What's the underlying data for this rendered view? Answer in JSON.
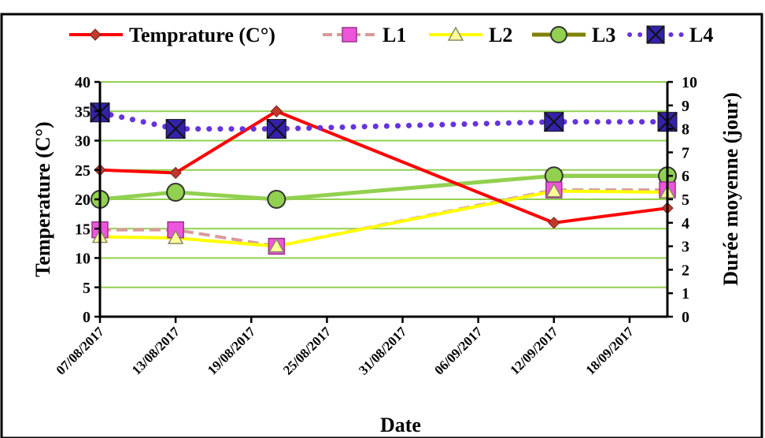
{
  "chart_data": {
    "type": "line",
    "xlabel": "Date",
    "ylabel_left": "Temperature (C°)",
    "ylabel_right": "Durée moyenne (jour)",
    "ylim_left": [
      0,
      40
    ],
    "ylim_right": [
      0,
      10
    ],
    "yticks_left": [
      "0",
      "5",
      "10",
      "15",
      "20",
      "25",
      "30",
      "35",
      "40"
    ],
    "yticks_right": [
      "0",
      "1",
      "2",
      "3",
      "4",
      "5",
      "6",
      "7",
      "8",
      "9",
      "10"
    ],
    "xticks": [
      "07/08/2017",
      "13/08/2017",
      "19/08/2017",
      "25/08/2017",
      "31/08/2017",
      "06/09/2017",
      "12/09/2017",
      "18/09/2017"
    ],
    "xtick_days": [
      0,
      6,
      12,
      18,
      24,
      30,
      36,
      42
    ],
    "x_range_days": [
      0,
      45
    ],
    "grid": true,
    "legend_position": "top",
    "colors": {
      "temperature": "#ff0000",
      "temperature_marker": "#c0392b",
      "L1_line": "#d99a9a",
      "L1_marker": "#ee55dd",
      "L2_line": "#ffff00",
      "L2_marker": "#ffff99",
      "L3_line": "#808000",
      "L3_marker": "#92d050",
      "L3_main_line": "#92d050",
      "L4_line": "#6633dd",
      "L4_marker": "#3322aa",
      "grid": "#92d050"
    },
    "series": [
      {
        "name": "Temprature (C°)",
        "axis": "left",
        "dates": [
          "07/08/2017",
          "13/08/2017",
          "21/08/2017",
          "12/09/2017",
          "21/09/2017"
        ],
        "x_days": [
          0,
          6,
          14,
          36,
          45
        ],
        "values": [
          25,
          24.5,
          35,
          16,
          18.5
        ]
      },
      {
        "name": "L1",
        "axis": "right",
        "dates": [
          "07/08/2017",
          "13/08/2017",
          "21/08/2017",
          "12/09/2017",
          "21/09/2017"
        ],
        "x_days": [
          0,
          6,
          14,
          36,
          45
        ],
        "values": [
          3.7,
          3.7,
          3.0,
          5.4,
          5.4
        ]
      },
      {
        "name": "L2",
        "axis": "right",
        "dates": [
          "07/08/2017",
          "13/08/2017",
          "21/08/2017",
          "12/09/2017",
          "21/09/2017"
        ],
        "x_days": [
          0,
          6,
          14,
          36,
          45
        ],
        "values": [
          3.4,
          3.35,
          3.0,
          5.35,
          5.3
        ]
      },
      {
        "name": "L3",
        "axis": "right",
        "dates": [
          "07/08/2017",
          "13/08/2017",
          "21/08/2017",
          "12/09/2017",
          "21/09/2017"
        ],
        "x_days": [
          0,
          6,
          14,
          36,
          45
        ],
        "values": [
          5.0,
          5.3,
          5.0,
          6.0,
          6.0
        ]
      },
      {
        "name": "L4",
        "axis": "right",
        "dates": [
          "07/08/2017",
          "13/08/2017",
          "21/08/2017",
          "12/09/2017",
          "21/09/2017"
        ],
        "x_days": [
          0,
          6,
          14,
          36,
          45
        ],
        "values": [
          8.7,
          8.0,
          8.0,
          8.3,
          8.3
        ]
      }
    ]
  }
}
